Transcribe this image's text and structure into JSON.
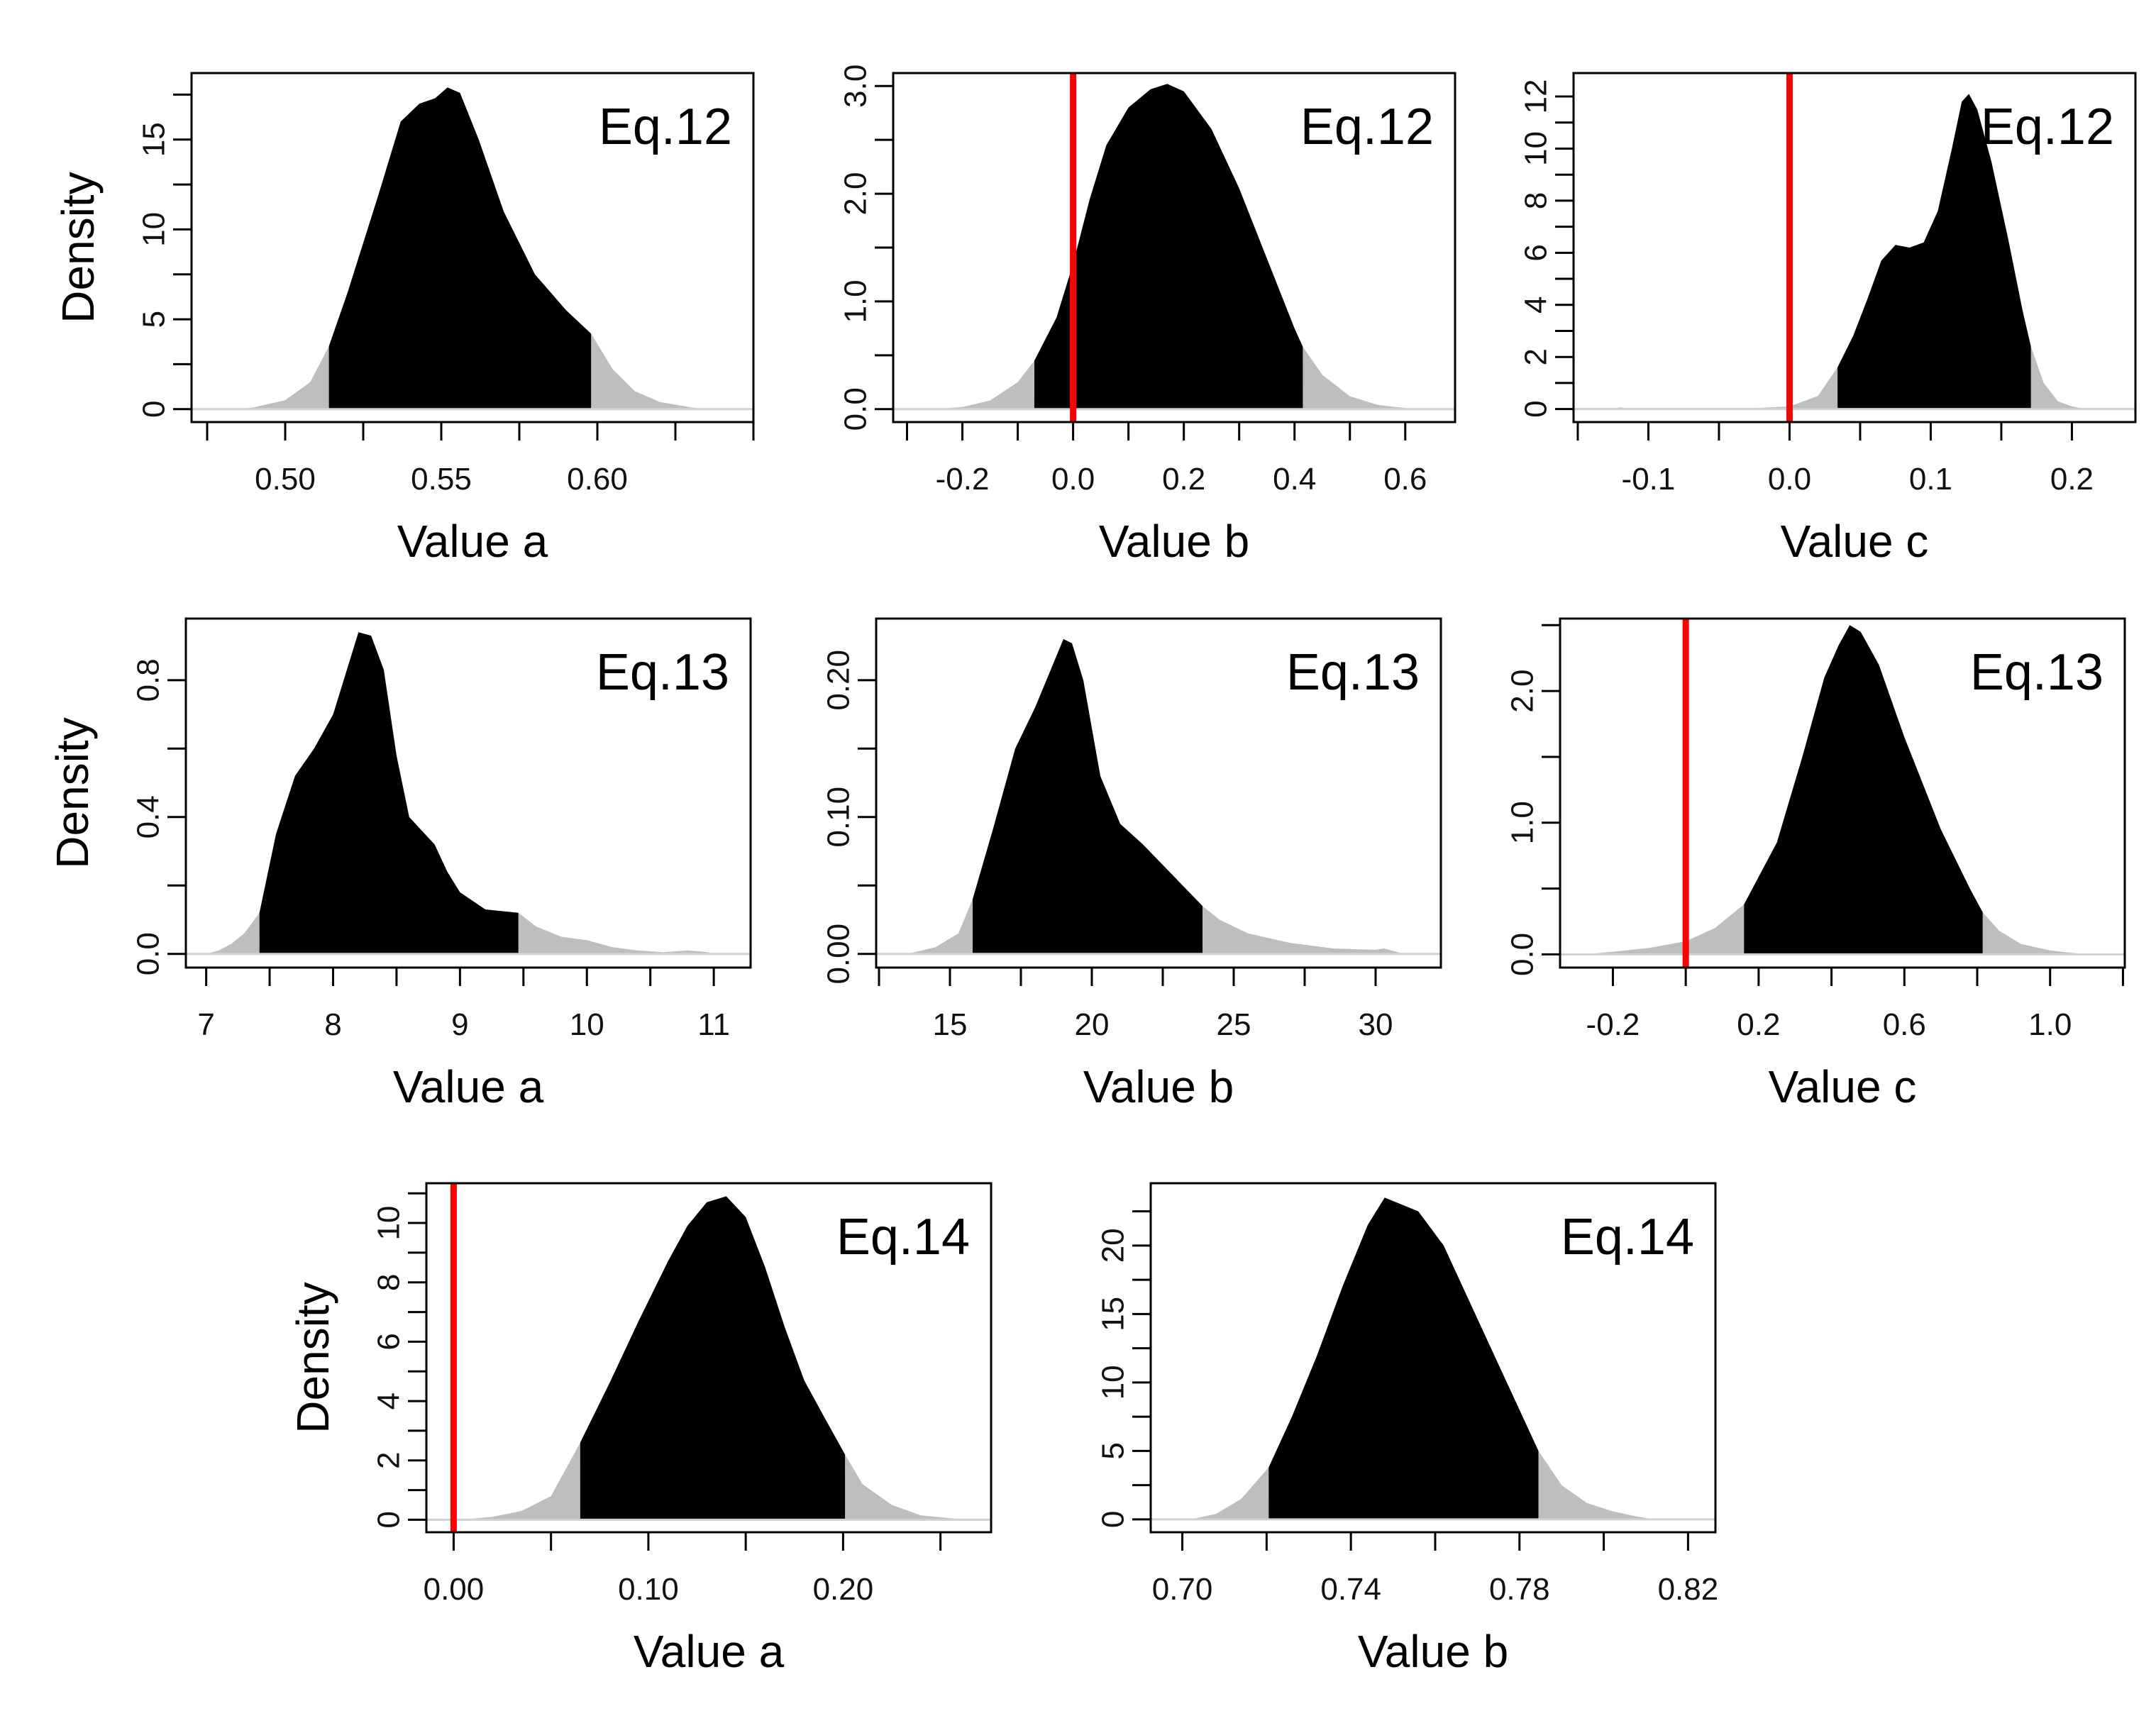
{
  "figure": {
    "ylabel": "Density",
    "colors": {
      "hdi_fill": "#000000",
      "tail_fill": "#bebebe",
      "reference_line": "#ff0000",
      "frame": "#000000"
    }
  },
  "chart_data": [
    {
      "type": "area",
      "equation": "Eq.12",
      "xlabel": "Value a",
      "ylabel": "Density",
      "xlim": [
        0.47,
        0.65
      ],
      "ylim": [
        -0.72,
        18.7
      ],
      "xticks": [
        0.5,
        0.55,
        0.6
      ],
      "xtick_labels": [
        "0.50",
        "0.55",
        "0.60"
      ],
      "yticks": [
        0,
        5,
        10,
        15
      ],
      "ytick_labels": [
        "0",
        "5",
        "10",
        "15"
      ],
      "ref_line": null,
      "hdi": [
        0.514,
        0.598
      ],
      "curve": [
        [
          0.485,
          0
        ],
        [
          0.49,
          0.1
        ],
        [
          0.5,
          0.5
        ],
        [
          0.508,
          1.5
        ],
        [
          0.514,
          3.5
        ],
        [
          0.52,
          6.5
        ],
        [
          0.53,
          12
        ],
        [
          0.537,
          16
        ],
        [
          0.543,
          17
        ],
        [
          0.548,
          17.3
        ],
        [
          0.552,
          17.9
        ],
        [
          0.556,
          17.6
        ],
        [
          0.562,
          15
        ],
        [
          0.57,
          11
        ],
        [
          0.58,
          7.5
        ],
        [
          0.59,
          5.5
        ],
        [
          0.598,
          4.2
        ],
        [
          0.605,
          2.2
        ],
        [
          0.612,
          1
        ],
        [
          0.62,
          0.4
        ],
        [
          0.63,
          0.1
        ],
        [
          0.635,
          0
        ]
      ]
    },
    {
      "type": "area",
      "equation": "Eq.12",
      "xlabel": "Value b",
      "ylabel": "Density",
      "xlim": [
        -0.325,
        0.69
      ],
      "ylim": [
        -0.12,
        3.12
      ],
      "xticks": [
        -0.2,
        0.0,
        0.2,
        0.4,
        0.6
      ],
      "xtick_labels": [
        "-0.2",
        "0.0",
        "0.2",
        "0.4",
        "0.6"
      ],
      "yticks": [
        0.0,
        1.0,
        2.0,
        3.0
      ],
      "ytick_labels": [
        "0.0",
        "1.0",
        "2.0",
        "3.0"
      ],
      "ref_line": 0.0,
      "hdi": [
        -0.07,
        0.415
      ],
      "curve": [
        [
          -0.25,
          0
        ],
        [
          -0.2,
          0.02
        ],
        [
          -0.15,
          0.08
        ],
        [
          -0.1,
          0.25
        ],
        [
          -0.07,
          0.45
        ],
        [
          -0.03,
          0.85
        ],
        [
          0.0,
          1.35
        ],
        [
          0.03,
          1.95
        ],
        [
          0.06,
          2.45
        ],
        [
          0.1,
          2.8
        ],
        [
          0.14,
          2.97
        ],
        [
          0.17,
          3.02
        ],
        [
          0.2,
          2.95
        ],
        [
          0.25,
          2.6
        ],
        [
          0.3,
          2.05
        ],
        [
          0.35,
          1.4
        ],
        [
          0.4,
          0.75
        ],
        [
          0.415,
          0.58
        ],
        [
          0.45,
          0.32
        ],
        [
          0.5,
          0.12
        ],
        [
          0.55,
          0.04
        ],
        [
          0.6,
          0.01
        ],
        [
          0.63,
          0
        ]
      ]
    },
    {
      "type": "area",
      "equation": "Eq.12",
      "xlabel": "Value c",
      "ylabel": "Density",
      "xlim": [
        -0.153,
        0.245
      ],
      "ylim": [
        -0.5,
        12.9
      ],
      "xticks": [
        -0.1,
        0.0,
        0.1,
        0.2
      ],
      "xtick_labels": [
        "-0.1",
        "0.0",
        "0.1",
        "0.2"
      ],
      "yticks": [
        0,
        2,
        4,
        6,
        8,
        10,
        12
      ],
      "ytick_labels": [
        "0",
        "2",
        "4",
        "6",
        "8",
        "10",
        "12"
      ],
      "ref_line": 0.0,
      "hdi": [
        0.034,
        0.171
      ],
      "curve": [
        [
          -0.13,
          0
        ],
        [
          -0.12,
          0.06
        ],
        [
          -0.11,
          0
        ],
        [
          -0.04,
          0
        ],
        [
          0.0,
          0.1
        ],
        [
          0.02,
          0.5
        ],
        [
          0.034,
          1.6
        ],
        [
          0.045,
          2.8
        ],
        [
          0.055,
          4.2
        ],
        [
          0.065,
          5.7
        ],
        [
          0.075,
          6.3
        ],
        [
          0.085,
          6.2
        ],
        [
          0.095,
          6.4
        ],
        [
          0.105,
          7.6
        ],
        [
          0.115,
          10
        ],
        [
          0.122,
          11.8
        ],
        [
          0.127,
          12.1
        ],
        [
          0.133,
          11.5
        ],
        [
          0.143,
          9.5
        ],
        [
          0.155,
          6.5
        ],
        [
          0.165,
          3.8
        ],
        [
          0.171,
          2.4
        ],
        [
          0.18,
          1
        ],
        [
          0.19,
          0.3
        ],
        [
          0.2,
          0.1
        ],
        [
          0.21,
          0
        ]
      ]
    },
    {
      "type": "area",
      "equation": "Eq.13",
      "xlabel": "Value a",
      "ylabel": "Density",
      "xlim": [
        6.84,
        11.29
      ],
      "ylim": [
        -0.04,
        0.98
      ],
      "xticks": [
        7,
        8,
        9,
        10,
        11
      ],
      "xtick_labels": [
        "7",
        "8",
        "9",
        "10",
        "11"
      ],
      "yticks": [
        0.0,
        0.4,
        0.8
      ],
      "ytick_labels": [
        "0.0",
        "0.4",
        "0.8"
      ],
      "ref_line": null,
      "hdi": [
        7.42,
        9.46
      ],
      "curve": [
        [
          7.0,
          0
        ],
        [
          7.1,
          0.01
        ],
        [
          7.2,
          0.03
        ],
        [
          7.3,
          0.06
        ],
        [
          7.42,
          0.12
        ],
        [
          7.55,
          0.35
        ],
        [
          7.7,
          0.52
        ],
        [
          7.85,
          0.6
        ],
        [
          8.0,
          0.7
        ],
        [
          8.1,
          0.82
        ],
        [
          8.2,
          0.94
        ],
        [
          8.3,
          0.93
        ],
        [
          8.4,
          0.83
        ],
        [
          8.5,
          0.58
        ],
        [
          8.6,
          0.4
        ],
        [
          8.7,
          0.36
        ],
        [
          8.8,
          0.32
        ],
        [
          8.9,
          0.24
        ],
        [
          9.0,
          0.18
        ],
        [
          9.2,
          0.13
        ],
        [
          9.46,
          0.12
        ],
        [
          9.6,
          0.08
        ],
        [
          9.8,
          0.05
        ],
        [
          10.0,
          0.04
        ],
        [
          10.2,
          0.02
        ],
        [
          10.4,
          0.01
        ],
        [
          10.6,
          0.005
        ],
        [
          10.8,
          0.01
        ],
        [
          10.95,
          0.005
        ],
        [
          11.0,
          0
        ]
      ]
    },
    {
      "type": "area",
      "equation": "Eq.13",
      "xlabel": "Value b",
      "ylabel": "Density",
      "xlim": [
        12.4,
        32.3
      ],
      "ylim": [
        -0.01,
        0.245
      ],
      "xticks": [
        15,
        20,
        25,
        30
      ],
      "xtick_labels": [
        "15",
        "20",
        "25",
        "30"
      ],
      "yticks": [
        0.0,
        0.1,
        0.2
      ],
      "ytick_labels": [
        "0.00",
        "0.10",
        "0.20"
      ],
      "ref_line": null,
      "hdi": [
        15.8,
        23.9
      ],
      "curve": [
        [
          13.5,
          0
        ],
        [
          14.5,
          0.005
        ],
        [
          15.3,
          0.015
        ],
        [
          15.8,
          0.04
        ],
        [
          16.5,
          0.09
        ],
        [
          17.3,
          0.15
        ],
        [
          18.0,
          0.18
        ],
        [
          18.6,
          0.21
        ],
        [
          19.0,
          0.23
        ],
        [
          19.3,
          0.227
        ],
        [
          19.7,
          0.2
        ],
        [
          20.3,
          0.13
        ],
        [
          21.0,
          0.095
        ],
        [
          21.8,
          0.08
        ],
        [
          22.5,
          0.065
        ],
        [
          23.2,
          0.05
        ],
        [
          23.9,
          0.035
        ],
        [
          24.5,
          0.025
        ],
        [
          25.5,
          0.015
        ],
        [
          27.0,
          0.008
        ],
        [
          28.5,
          0.004
        ],
        [
          30.0,
          0.003
        ],
        [
          30.3,
          0.004
        ],
        [
          31.0,
          0
        ]
      ]
    },
    {
      "type": "area",
      "equation": "Eq.13",
      "xlabel": "Value c",
      "ylabel": "Density",
      "xlim": [
        -0.345,
        1.205
      ],
      "ylim": [
        -0.1,
        2.55
      ],
      "xticks": [
        -0.2,
        0.2,
        0.6,
        1.0
      ],
      "xtick_labels": [
        "-0.2",
        "0.2",
        "0.6",
        "1.0"
      ],
      "yticks": [
        0.0,
        1.0,
        2.0
      ],
      "ytick_labels": [
        "0.0",
        "1.0",
        "2.0"
      ],
      "ref_line": 0.0,
      "hdi": [
        0.16,
        0.815
      ],
      "curve": [
        [
          -0.28,
          0
        ],
        [
          -0.2,
          0.02
        ],
        [
          -0.1,
          0.05
        ],
        [
          0.0,
          0.1
        ],
        [
          0.08,
          0.2
        ],
        [
          0.16,
          0.38
        ],
        [
          0.25,
          0.85
        ],
        [
          0.32,
          1.5
        ],
        [
          0.38,
          2.1
        ],
        [
          0.42,
          2.35
        ],
        [
          0.45,
          2.5
        ],
        [
          0.48,
          2.45
        ],
        [
          0.53,
          2.2
        ],
        [
          0.6,
          1.65
        ],
        [
          0.7,
          0.95
        ],
        [
          0.78,
          0.5
        ],
        [
          0.815,
          0.32
        ],
        [
          0.86,
          0.18
        ],
        [
          0.92,
          0.08
        ],
        [
          1.0,
          0.03
        ],
        [
          1.1,
          0
        ]
      ]
    },
    {
      "type": "area",
      "equation": "Eq.14",
      "xlabel": "Value a",
      "ylabel": "Density",
      "xlim": [
        -0.014,
        0.276
      ],
      "ylim": [
        -0.42,
        11.34
      ],
      "xticks": [
        0.0,
        0.1,
        0.2
      ],
      "xtick_labels": [
        "0.00",
        "0.10",
        "0.20"
      ],
      "yticks": [
        0,
        2,
        4,
        6,
        8,
        10
      ],
      "ytick_labels": [
        "0",
        "2",
        "4",
        "6",
        "8",
        "10"
      ],
      "ref_line": 0.0,
      "hdi": [
        0.065,
        0.201
      ],
      "curve": [
        [
          0.0,
          0
        ],
        [
          0.01,
          0.04
        ],
        [
          0.02,
          0.1
        ],
        [
          0.035,
          0.3
        ],
        [
          0.05,
          0.8
        ],
        [
          0.065,
          2.6
        ],
        [
          0.08,
          4.6
        ],
        [
          0.095,
          6.7
        ],
        [
          0.11,
          8.7
        ],
        [
          0.12,
          9.9
        ],
        [
          0.13,
          10.7
        ],
        [
          0.14,
          10.9
        ],
        [
          0.15,
          10.2
        ],
        [
          0.16,
          8.5
        ],
        [
          0.17,
          6.5
        ],
        [
          0.18,
          4.7
        ],
        [
          0.19,
          3.5
        ],
        [
          0.201,
          2.2
        ],
        [
          0.21,
          1.2
        ],
        [
          0.225,
          0.5
        ],
        [
          0.24,
          0.15
        ],
        [
          0.255,
          0.05
        ],
        [
          0.265,
          0
        ]
      ]
    },
    {
      "type": "area",
      "equation": "Eq.14",
      "xlabel": "Value b",
      "ylabel": "Density",
      "xlim": [
        0.6925,
        0.8265
      ],
      "ylim": [
        -0.94,
        24.55
      ],
      "xticks": [
        0.7,
        0.74,
        0.78,
        0.82
      ],
      "xtick_labels": [
        "0.70",
        "0.74",
        "0.78",
        "0.82"
      ],
      "yticks": [
        0,
        5,
        10,
        15,
        20
      ],
      "ytick_labels": [
        "0",
        "5",
        "10",
        "15",
        "20"
      ],
      "ref_line": null,
      "hdi": [
        0.7205,
        0.7845
      ],
      "curve": [
        [
          0.702,
          0
        ],
        [
          0.708,
          0.4
        ],
        [
          0.714,
          1.5
        ],
        [
          0.7205,
          3.8
        ],
        [
          0.726,
          7.5
        ],
        [
          0.732,
          12
        ],
        [
          0.738,
          17
        ],
        [
          0.744,
          21.5
        ],
        [
          0.748,
          23.5
        ],
        [
          0.752,
          23
        ],
        [
          0.756,
          22.5
        ],
        [
          0.762,
          20
        ],
        [
          0.768,
          16
        ],
        [
          0.774,
          12
        ],
        [
          0.78,
          8
        ],
        [
          0.7845,
          5
        ],
        [
          0.79,
          2.5
        ],
        [
          0.796,
          1.2
        ],
        [
          0.802,
          0.6
        ],
        [
          0.808,
          0.2
        ],
        [
          0.812,
          0
        ]
      ]
    }
  ]
}
